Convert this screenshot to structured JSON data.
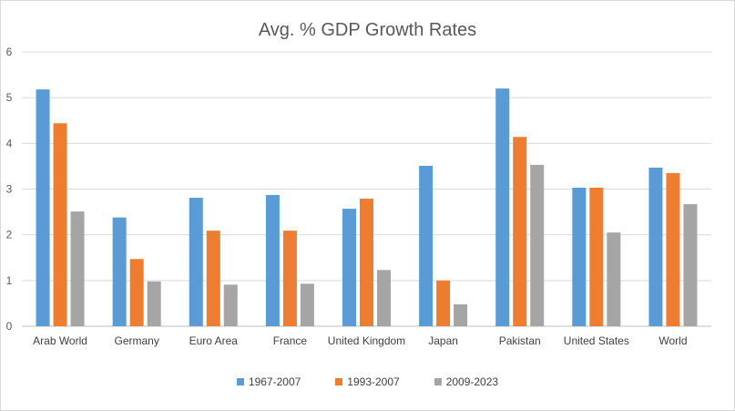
{
  "chart_data": {
    "type": "bar",
    "title": "Avg. % GDP Growth Rates",
    "xlabel": "",
    "ylabel": "",
    "ylim": [
      0,
      6
    ],
    "yticks": [
      0,
      1,
      2,
      3,
      4,
      5,
      6
    ],
    "grid": true,
    "legend_position": "bottom",
    "categories": [
      "Arab World",
      "Germany",
      "Euro Area",
      "France",
      "United Kingdom",
      "Japan",
      "Pakistan",
      "United States",
      "World"
    ],
    "series": [
      {
        "name": "1967-2007",
        "color": "#5b9bd5",
        "values": [
          5.18,
          2.38,
          2.81,
          2.87,
          2.57,
          3.51,
          5.2,
          3.03,
          3.47
        ]
      },
      {
        "name": "1993-2007",
        "color": "#ed7d31",
        "values": [
          4.44,
          1.47,
          2.09,
          2.09,
          2.79,
          1.0,
          4.14,
          3.03,
          3.35
        ]
      },
      {
        "name": "2009-2023",
        "color": "#a5a5a5",
        "values": [
          2.51,
          0.98,
          0.91,
          0.93,
          1.23,
          0.48,
          3.53,
          2.05,
          2.67
        ]
      }
    ]
  }
}
